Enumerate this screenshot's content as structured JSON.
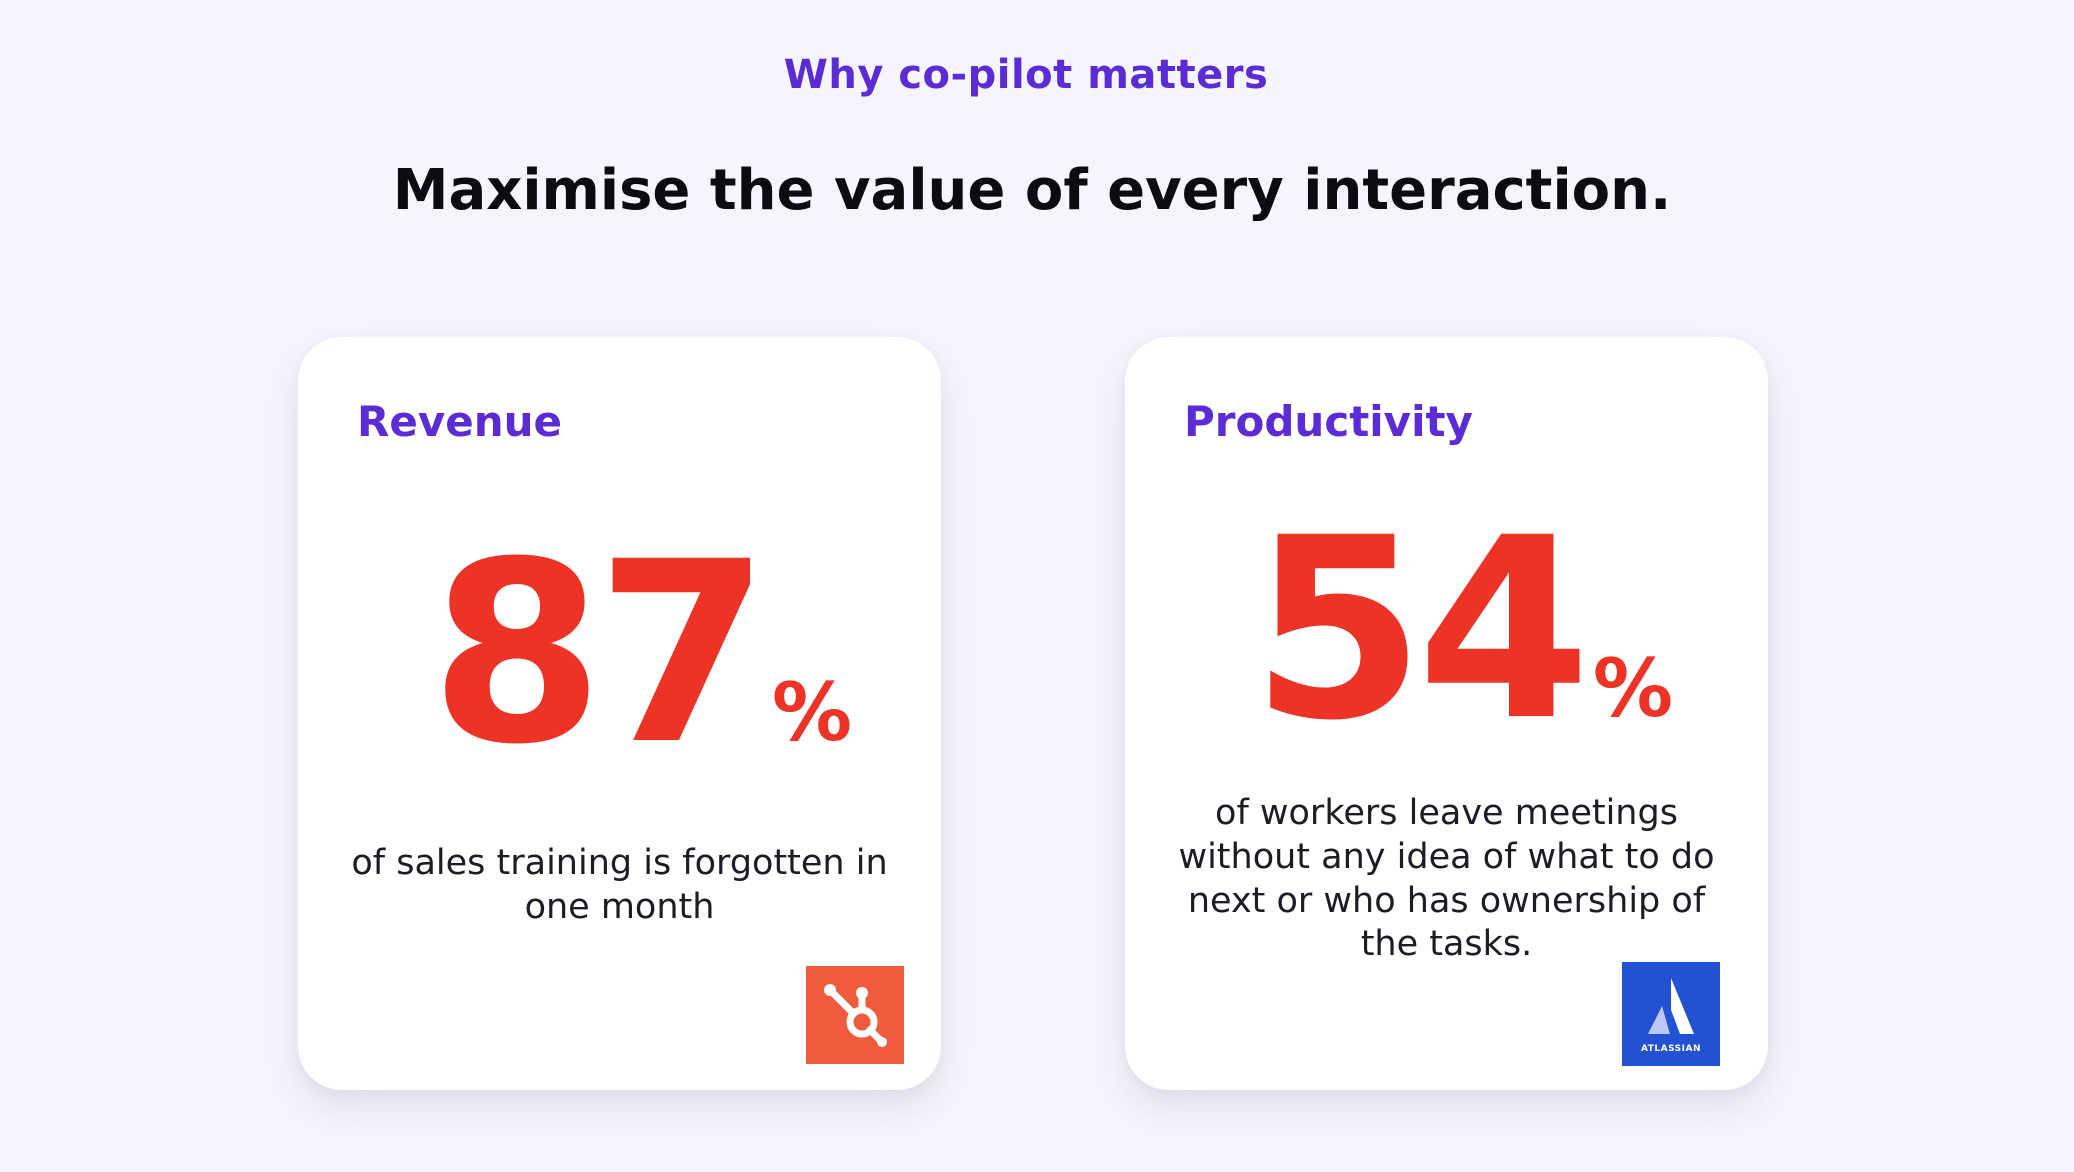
{
  "header": {
    "eyebrow": "Why co-pilot matters",
    "headline": "Maximise the value of every interaction."
  },
  "cards": [
    {
      "title": "Revenue",
      "stat_value": "87",
      "stat_unit": "%",
      "description": "of sales training is forgotten in one month",
      "logo_icon": "hubspot-logo",
      "logo_color": "#ef5b3c"
    },
    {
      "title": "Productivity",
      "stat_value": "54",
      "stat_unit": "%",
      "description": "of workers leave meetings without any idea of what to do next or who has ownership of the tasks.",
      "logo_icon": "atlassian-logo",
      "logo_text": "ATLASSIAN",
      "logo_color": "#2251d4"
    }
  ],
  "colors": {
    "background": "#f5f5fd",
    "accent_purple": "#5b2bd6",
    "stat_red": "#ec3326",
    "card": "#ffffff"
  }
}
